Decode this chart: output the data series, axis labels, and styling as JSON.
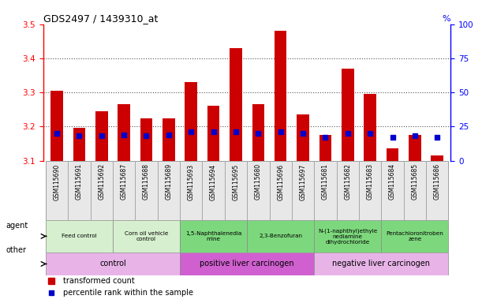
{
  "title": "GDS2497 / 1439310_at",
  "samples": [
    "GSM115690",
    "GSM115691",
    "GSM115692",
    "GSM115687",
    "GSM115688",
    "GSM115689",
    "GSM115693",
    "GSM115694",
    "GSM115695",
    "GSM115680",
    "GSM115696",
    "GSM115697",
    "GSM115681",
    "GSM115682",
    "GSM115683",
    "GSM115684",
    "GSM115685",
    "GSM115686"
  ],
  "transformed_count": [
    3.305,
    3.195,
    3.245,
    3.265,
    3.225,
    3.225,
    3.33,
    3.26,
    3.43,
    3.265,
    3.48,
    3.235,
    3.175,
    3.37,
    3.295,
    3.135,
    3.175,
    3.115
  ],
  "percentile_rank": [
    20,
    18,
    18,
    19,
    18,
    19,
    21,
    21,
    21,
    20,
    21,
    20,
    17,
    20,
    20,
    17,
    18,
    17
  ],
  "ylim_left": [
    3.1,
    3.5
  ],
  "ylim_right": [
    0,
    100
  ],
  "yticks_left": [
    3.1,
    3.2,
    3.3,
    3.4,
    3.5
  ],
  "yticks_right": [
    0,
    25,
    50,
    75,
    100
  ],
  "agent_groups": [
    {
      "label": "Feed control",
      "start": 0,
      "end": 3,
      "color": "#d6efce"
    },
    {
      "label": "Corn oil vehicle\ncontrol",
      "start": 3,
      "end": 6,
      "color": "#d6efce"
    },
    {
      "label": "1,5-Naphthalenedia\nmine",
      "start": 6,
      "end": 9,
      "color": "#7dd87d"
    },
    {
      "label": "2,3-Benzofuran",
      "start": 9,
      "end": 12,
      "color": "#7dd87d"
    },
    {
      "label": "N-(1-naphthyl)ethyle\nnediamine\ndihydrochloride",
      "start": 12,
      "end": 15,
      "color": "#7dd87d"
    },
    {
      "label": "Pentachloronitroben\nzene",
      "start": 15,
      "end": 18,
      "color": "#7dd87d"
    }
  ],
  "other_groups": [
    {
      "label": "control",
      "start": 0,
      "end": 6,
      "color": "#e8b4e8"
    },
    {
      "label": "positive liver carcinogen",
      "start": 6,
      "end": 12,
      "color": "#d060d0"
    },
    {
      "label": "negative liver carcinogen",
      "start": 12,
      "end": 18,
      "color": "#e8b4e8"
    }
  ],
  "bar_color": "#cc0000",
  "dot_color": "#0000cc",
  "baseline": 3.1,
  "bar_width": 0.55,
  "legend_red": "transformed count",
  "legend_blue": "percentile rank within the sample",
  "tick_bg_color": "#e8e8e8",
  "grid_color": "#555555"
}
